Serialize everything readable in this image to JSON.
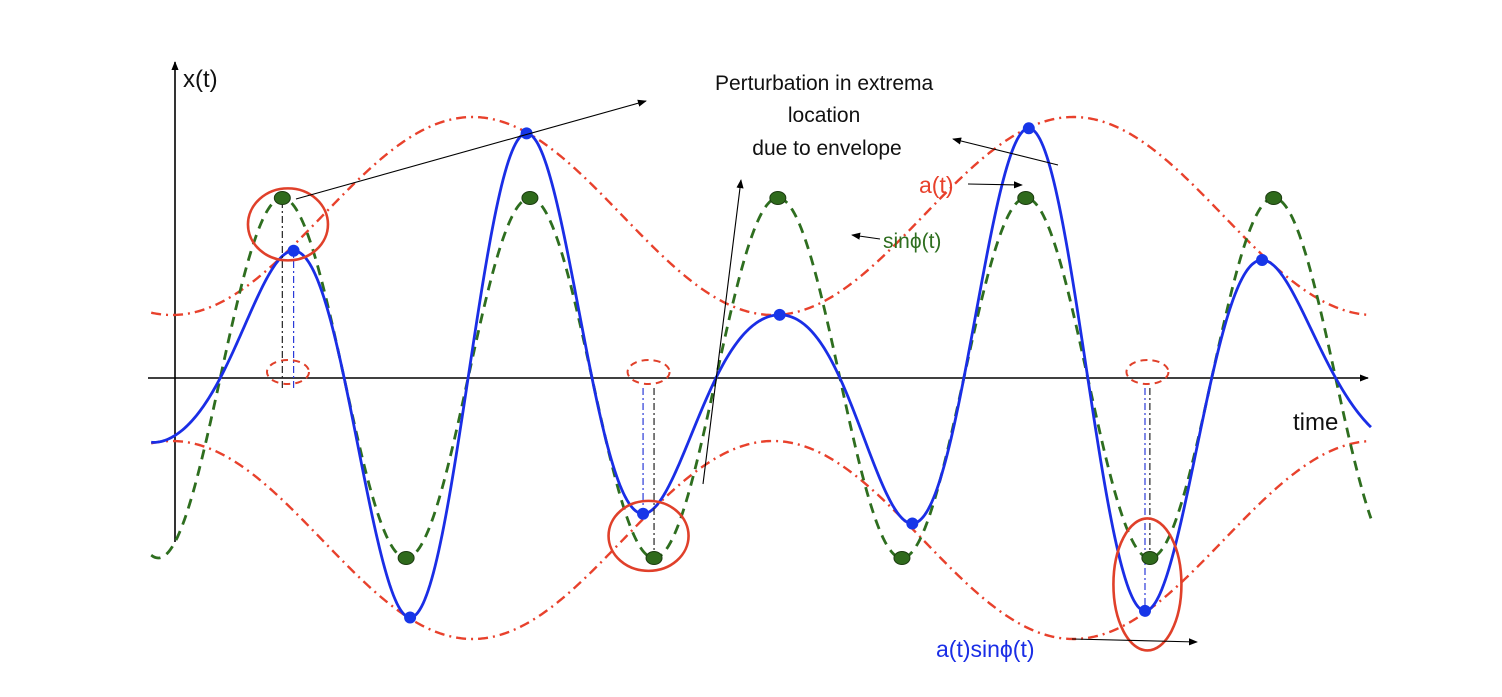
{
  "labels": {
    "y_axis": "x(t)",
    "x_axis": "time",
    "annotation_lines": [
      "Perturbation in extrema",
      "location",
      "due to envelope"
    ],
    "envelope": "a(t)",
    "phase": "sinϕ(t)",
    "product": "a(t)sinϕ(t)"
  },
  "colors": {
    "envelope": "#e8412c",
    "phase": "#2e6e1f",
    "product": "#1a2ee6",
    "product_marker": "#1736e8",
    "phase_marker": "#2f6a1c",
    "highlight_circle": "#e0402a",
    "guide_black": "#222222",
    "guide_blue": "#2a3ad8",
    "axis": "#000000"
  },
  "chart_data": {
    "type": "line",
    "title": "",
    "xlabel": "time",
    "ylabel": "x(t)",
    "xlim": [
      0,
      10
    ],
    "ylim": [
      -1.6,
      1.6
    ],
    "series": [
      {
        "name": "a(t)",
        "style": "dash-dot",
        "formula": "0.9 + 0.55*cos(2*pi*(t - 2.5)/5.05)"
      },
      {
        "name": "sinϕ(t)",
        "style": "dashed",
        "formula": "sin(2*pi*(t - 0.38)/2.083)"
      },
      {
        "name": "a(t)sinϕ(t)",
        "style": "solid",
        "formula": "a(t)*sinϕ(t)"
      }
    ],
    "highlighted_extrema_t": [
      0.73,
      3.96,
      7.75
    ]
  }
}
